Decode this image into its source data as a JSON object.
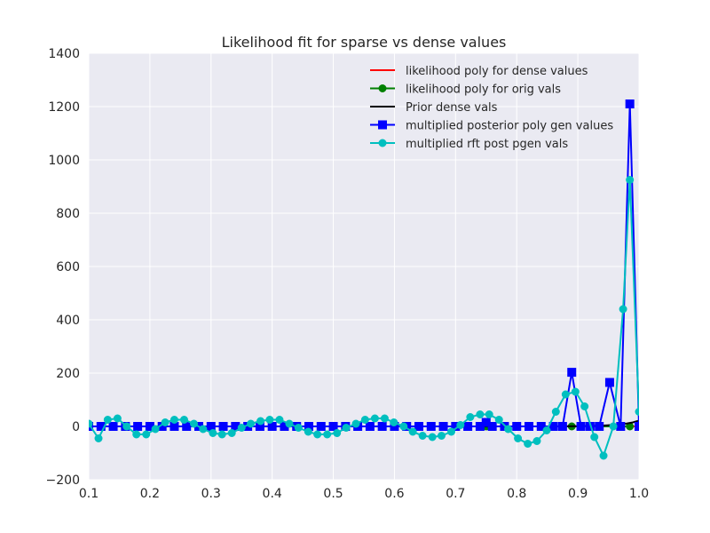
{
  "chart_data": {
    "type": "line",
    "title": "Likelihood fit for sparse vs dense values",
    "xlabel": "",
    "ylabel": "",
    "xlim": [
      0.1,
      1.0
    ],
    "ylim": [
      -200,
      1400
    ],
    "xticks": [
      0.1,
      0.2,
      0.3,
      0.4,
      0.5,
      0.6,
      0.7,
      0.8,
      0.9,
      1.0
    ],
    "xtick_labels": [
      "0.1",
      "0.2",
      "0.3",
      "0.4",
      "0.5",
      "0.6",
      "0.7",
      "0.8",
      "0.9",
      "1.0"
    ],
    "yticks": [
      -200,
      0,
      200,
      400,
      600,
      800,
      1000,
      1200,
      1400
    ],
    "ytick_labels": [
      "−200",
      "0",
      "200",
      "400",
      "600",
      "800",
      "1000",
      "1200",
      "1400"
    ],
    "grid": true,
    "background": "#eaeaf2",
    "legend_position": "top-right",
    "series": [
      {
        "name": "likelihood poly for dense values",
        "color": "#ff0000",
        "marker": "none",
        "x": [
          0.1,
          0.2,
          0.3,
          0.4,
          0.5,
          0.6,
          0.7,
          0.8,
          0.9,
          0.95,
          1.0
        ],
        "y": [
          0,
          0,
          0,
          0,
          0,
          0,
          0,
          0,
          0,
          0,
          0
        ]
      },
      {
        "name": "likelihood poly for orig vals",
        "color": "#008000",
        "marker": "circle",
        "x": [
          0.75,
          0.89,
          0.985
        ],
        "y": [
          0,
          0,
          0
        ]
      },
      {
        "name": "Prior dense vals",
        "color": "#000000",
        "marker": "none",
        "x": [
          0.1,
          0.3,
          0.5,
          0.7,
          0.85,
          0.9,
          0.94,
          0.96,
          0.98,
          0.99,
          1.0
        ],
        "y": [
          0,
          0,
          0,
          0,
          0,
          1,
          3,
          6,
          11,
          15,
          22
        ]
      },
      {
        "name": "multiplied posterior poly gen values",
        "color": "#0000ff",
        "marker": "square",
        "x": [
          0.1,
          0.12,
          0.14,
          0.16,
          0.18,
          0.2,
          0.22,
          0.24,
          0.26,
          0.28,
          0.3,
          0.32,
          0.34,
          0.36,
          0.38,
          0.4,
          0.42,
          0.44,
          0.46,
          0.48,
          0.5,
          0.52,
          0.54,
          0.56,
          0.58,
          0.6,
          0.62,
          0.64,
          0.66,
          0.68,
          0.7,
          0.72,
          0.74,
          0.75,
          0.76,
          0.78,
          0.8,
          0.82,
          0.84,
          0.86,
          0.875,
          0.89,
          0.905,
          0.92,
          0.935,
          0.952,
          0.97,
          0.985,
          1.0
        ],
        "y": [
          0,
          0,
          0,
          0,
          0,
          0,
          0,
          0,
          0,
          0,
          0,
          0,
          0,
          0,
          0,
          0,
          0,
          0,
          0,
          0,
          0,
          0,
          0,
          0,
          0,
          0,
          0,
          0,
          0,
          0,
          0,
          0,
          0,
          15,
          0,
          0,
          0,
          0,
          0,
          0,
          0,
          203,
          0,
          0,
          0,
          165,
          0,
          1210,
          0
        ]
      },
      {
        "name": "multiplied rft post pgen vals",
        "color": "#00bfbf",
        "marker": "circle",
        "x": [
          0.1,
          0.116,
          0.131,
          0.147,
          0.162,
          0.178,
          0.194,
          0.209,
          0.225,
          0.24,
          0.256,
          0.272,
          0.287,
          0.303,
          0.318,
          0.334,
          0.35,
          0.365,
          0.381,
          0.396,
          0.412,
          0.428,
          0.443,
          0.459,
          0.474,
          0.49,
          0.506,
          0.521,
          0.537,
          0.552,
          0.568,
          0.584,
          0.599,
          0.615,
          0.63,
          0.646,
          0.662,
          0.677,
          0.693,
          0.708,
          0.724,
          0.74,
          0.755,
          0.771,
          0.786,
          0.802,
          0.818,
          0.833,
          0.849,
          0.864,
          0.88,
          0.896,
          0.911,
          0.927,
          0.942,
          0.958,
          0.974,
          0.985,
          1.0
        ],
        "y": [
          10,
          -45,
          25,
          30,
          0,
          -30,
          -30,
          -10,
          15,
          25,
          25,
          10,
          -10,
          -25,
          -30,
          -25,
          -5,
          10,
          20,
          25,
          25,
          10,
          -5,
          -20,
          -30,
          -30,
          -25,
          -5,
          10,
          25,
          30,
          30,
          15,
          0,
          -20,
          -35,
          -40,
          -35,
          -20,
          5,
          35,
          45,
          45,
          25,
          -10,
          -45,
          -65,
          -55,
          -15,
          55,
          120,
          130,
          75,
          -40,
          -110,
          0,
          440,
          925,
          55
        ]
      }
    ]
  }
}
